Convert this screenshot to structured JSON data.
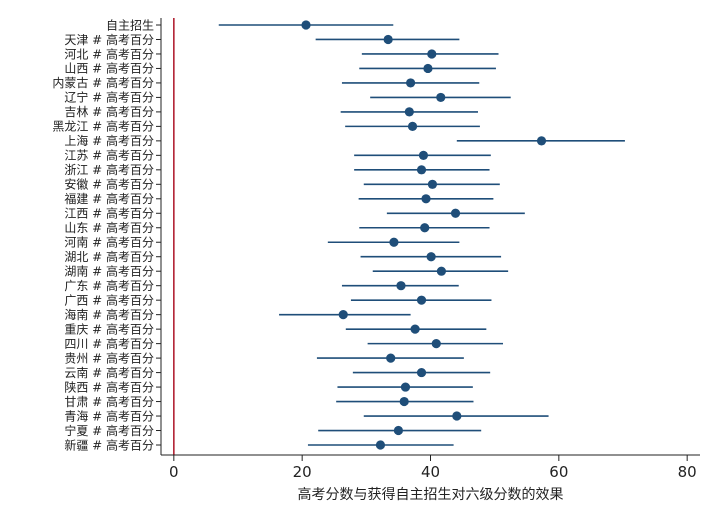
{
  "chart_data": {
    "type": "scatter",
    "subtype": "coefficient plot with horizontal confidence intervals",
    "title": "",
    "xlabel": "高考分数与获得自主招生对六级分数的效果",
    "ylabel": "",
    "xlim": [
      -2,
      82
    ],
    "xticks": [
      0,
      20,
      40,
      60,
      80
    ],
    "reference_line": {
      "x": 0,
      "color": "#b22234"
    },
    "grid": false,
    "legend": "none",
    "colors": {
      "marker": "#1f4e79",
      "interval": "#1f4e79",
      "reference": "#b22234"
    },
    "categories": [
      "自主招生",
      "天津 # 高考百分",
      "河北 # 高考百分",
      "山西 # 高考百分",
      "内蒙古 # 高考百分",
      "辽宁 # 高考百分",
      "吉林 # 高考百分",
      "黑龙江 # 高考百分",
      "上海 # 高考百分",
      "江苏 # 高考百分",
      "浙江 # 高考百分",
      "安徽 # 高考百分",
      "福建 # 高考百分",
      "江西 # 高考百分",
      "山东 # 高考百分",
      "河南 # 高考百分",
      "湖北 # 高考百分",
      "湖南 # 高考百分",
      "广东 # 高考百分",
      "广西 # 高考百分",
      "海南 # 高考百分",
      "重庆 # 高考百分",
      "四川 # 高考百分",
      "贵州 # 高考百分",
      "云南 # 高考百分",
      "陕西 # 高考百分",
      "甘肃 # 高考百分",
      "青海 # 高考百分",
      "宁夏 # 高考百分",
      "新疆 # 高考百分"
    ],
    "estimates": [
      20.6,
      33.4,
      40.2,
      39.6,
      36.9,
      41.6,
      36.7,
      37.2,
      57.3,
      38.9,
      38.6,
      40.3,
      39.3,
      43.9,
      39.1,
      34.3,
      40.1,
      41.7,
      35.4,
      38.6,
      26.4,
      37.6,
      40.9,
      33.8,
      38.6,
      36.1,
      35.9,
      44.1,
      35.0,
      32.2
    ],
    "ci_low": [
      7.0,
      22.1,
      29.3,
      28.9,
      26.2,
      30.6,
      26.0,
      26.7,
      44.1,
      28.1,
      28.1,
      29.6,
      28.8,
      33.2,
      28.9,
      24.0,
      29.1,
      31.0,
      26.2,
      27.6,
      16.4,
      26.8,
      30.2,
      22.3,
      27.9,
      25.5,
      25.3,
      29.6,
      22.5,
      20.9
    ],
    "ci_high": [
      34.2,
      44.5,
      50.6,
      50.2,
      47.6,
      52.5,
      47.4,
      47.7,
      70.3,
      49.4,
      49.2,
      50.8,
      49.8,
      54.7,
      49.2,
      44.5,
      51.0,
      52.1,
      44.4,
      49.5,
      36.9,
      48.7,
      51.3,
      45.2,
      49.3,
      46.6,
      46.7,
      58.4,
      47.9,
      43.6
    ]
  }
}
